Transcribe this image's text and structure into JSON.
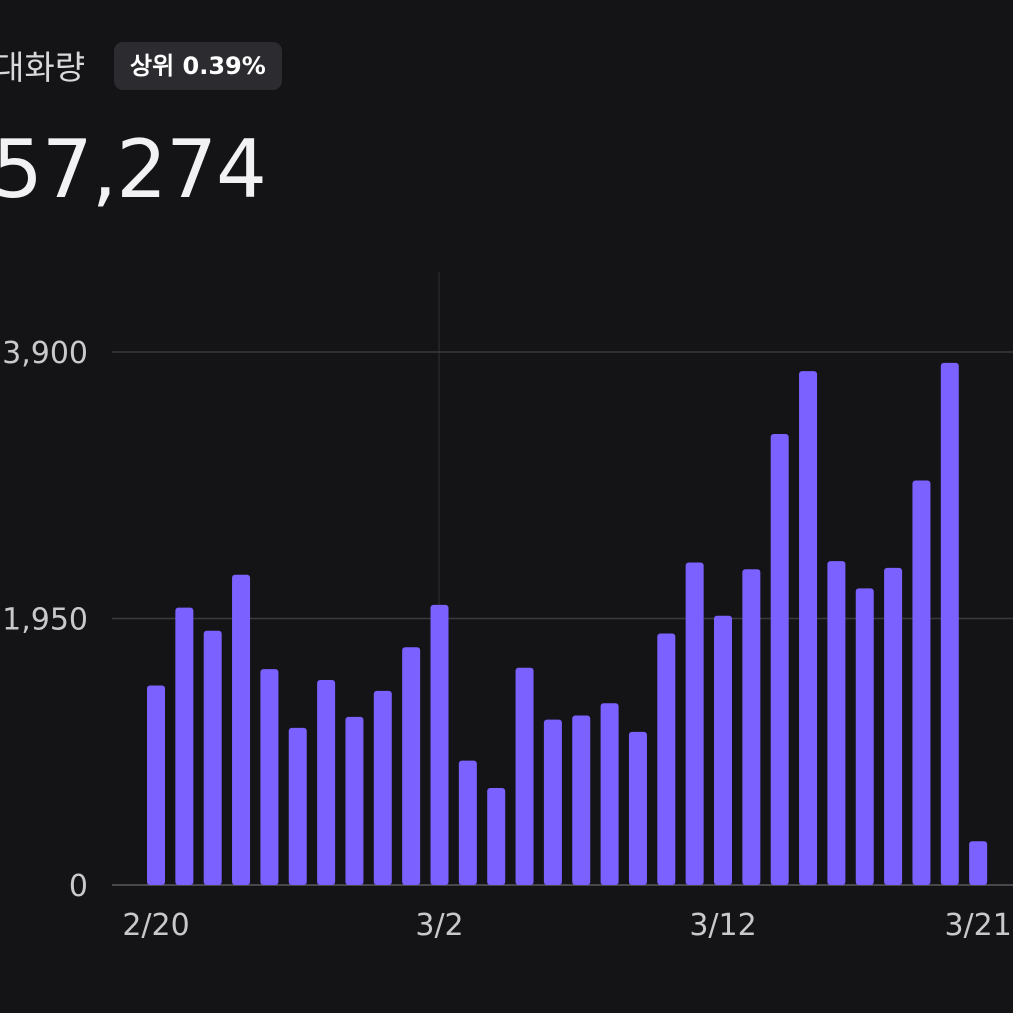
{
  "header": {
    "title": "대화량",
    "rank_badge": "상위 0.39%",
    "total": "57,274"
  },
  "colors": {
    "background": "#141416",
    "bar": "#7b61ff",
    "grid": "#3a3a3e",
    "axis_text": "#c9c9cc"
  },
  "chart_data": {
    "type": "bar",
    "categories": [
      "2/20",
      "2/21",
      "2/22",
      "2/23",
      "2/24",
      "2/25",
      "2/26",
      "2/27",
      "2/28",
      "3/1",
      "3/2",
      "3/3",
      "3/4",
      "3/5",
      "3/6",
      "3/7",
      "3/8",
      "3/9",
      "3/10",
      "3/11",
      "3/12",
      "3/13",
      "3/14",
      "3/15",
      "3/16",
      "3/17",
      "3/18",
      "3/19",
      "3/20",
      "3/21"
    ],
    "values": [
      1460,
      2030,
      1860,
      2270,
      1580,
      1150,
      1500,
      1230,
      1420,
      1740,
      2050,
      910,
      710,
      1590,
      1210,
      1240,
      1330,
      1120,
      1840,
      2360,
      1970,
      2310,
      3300,
      3760,
      2370,
      2170,
      2320,
      2960,
      3820,
      320
    ],
    "yticks": [
      "0",
      "1,950",
      "3,900"
    ],
    "ytick_values": [
      0,
      1950,
      3900
    ],
    "xticks": [
      "2/20",
      "3/2",
      "3/12",
      "3/21"
    ],
    "ylim": [
      0,
      3900
    ],
    "grid": true,
    "title": "",
    "xlabel": "",
    "ylabel": ""
  }
}
